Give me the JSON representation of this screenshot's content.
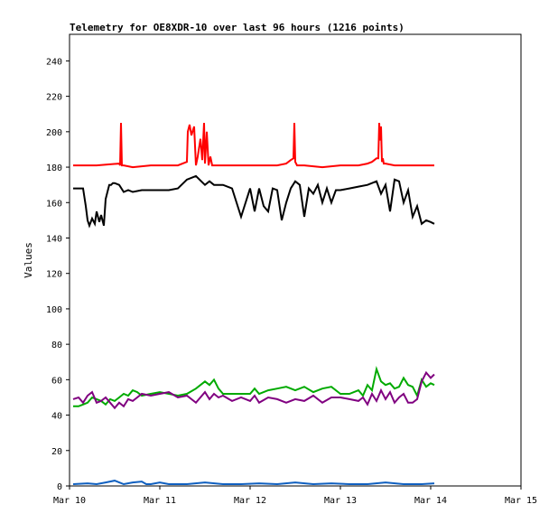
{
  "chart_data": {
    "type": "line",
    "title": "Telemetry for OE8XDR-10 over last 96 hours (1216 points)",
    "xlabel": "",
    "ylabel": "Values",
    "x_range": [
      "Mar 10",
      "Mar 15"
    ],
    "ylim": [
      0,
      255
    ],
    "x_ticks": [
      "Mar 10",
      "Mar 11",
      "Mar 12",
      "Mar 13",
      "Mar 14",
      "Mar 15"
    ],
    "y_ticks": [
      0,
      20,
      40,
      60,
      80,
      100,
      120,
      140,
      160,
      180,
      200,
      220,
      240
    ],
    "grid": false,
    "legend": "none",
    "x_units": "days since Mar 10",
    "series": [
      {
        "color": "#ff0000",
        "x": [
          0.04,
          0.3,
          0.55,
          0.56,
          0.57,
          0.58,
          0.6,
          0.7,
          0.9,
          1.0,
          1.2,
          1.3,
          1.31,
          1.33,
          1.35,
          1.38,
          1.4,
          1.42,
          1.45,
          1.47,
          1.49,
          1.5,
          1.52,
          1.54,
          1.56,
          1.58,
          1.6,
          1.8,
          2.0,
          2.3,
          2.4,
          2.45,
          2.48,
          2.49,
          2.5,
          2.52,
          2.6,
          2.8,
          3.0,
          3.2,
          3.3,
          3.35,
          3.4,
          3.42,
          3.43,
          3.44,
          3.45,
          3.46,
          3.47,
          3.48,
          3.5,
          3.6,
          3.8,
          4.04
        ],
        "y": [
          181,
          181,
          182,
          181,
          205,
          181,
          181,
          180,
          181,
          181,
          181,
          183,
          200,
          204,
          198,
          203,
          181,
          186,
          196,
          184,
          205,
          182,
          200,
          181,
          186,
          181,
          181,
          181,
          181,
          181,
          182,
          184,
          185,
          205,
          183,
          181,
          181,
          180,
          181,
          181,
          182,
          183,
          185,
          185,
          205,
          195,
          203,
          183,
          185,
          182,
          182,
          181,
          181,
          181
        ]
      },
      {
        "color": "#000000",
        "x": [
          0.04,
          0.15,
          0.18,
          0.2,
          0.22,
          0.25,
          0.28,
          0.3,
          0.33,
          0.35,
          0.38,
          0.4,
          0.42,
          0.44,
          0.46,
          0.48,
          0.5,
          0.55,
          0.6,
          0.65,
          0.7,
          0.8,
          0.9,
          1.0,
          1.1,
          1.2,
          1.3,
          1.4,
          1.5,
          1.55,
          1.6,
          1.65,
          1.7,
          1.8,
          1.9,
          2.0,
          2.05,
          2.1,
          2.15,
          2.2,
          2.25,
          2.3,
          2.35,
          2.4,
          2.45,
          2.5,
          2.55,
          2.6,
          2.65,
          2.7,
          2.75,
          2.8,
          2.85,
          2.9,
          2.95,
          3.0,
          3.1,
          3.2,
          3.3,
          3.4,
          3.45,
          3.5,
          3.55,
          3.6,
          3.65,
          3.7,
          3.75,
          3.8,
          3.85,
          3.9,
          3.95,
          4.0,
          4.04
        ],
        "y": [
          168,
          168,
          158,
          150,
          147,
          151,
          148,
          155,
          149,
          153,
          147,
          162,
          166,
          170,
          170,
          171,
          171,
          170,
          166,
          167,
          166,
          167,
          167,
          167,
          167,
          168,
          173,
          175,
          170,
          172,
          170,
          170,
          170,
          168,
          152,
          168,
          155,
          168,
          158,
          155,
          168,
          167,
          150,
          160,
          168,
          172,
          170,
          152,
          168,
          165,
          170,
          160,
          168,
          160,
          167,
          167,
          168,
          169,
          170,
          172,
          165,
          170,
          155,
          173,
          172,
          160,
          167,
          152,
          158,
          148,
          150,
          149,
          148
        ]
      },
      {
        "color": "#00aa00",
        "x": [
          0.04,
          0.1,
          0.15,
          0.2,
          0.25,
          0.3,
          0.35,
          0.4,
          0.45,
          0.5,
          0.55,
          0.6,
          0.65,
          0.7,
          0.75,
          0.8,
          0.9,
          1.0,
          1.1,
          1.2,
          1.3,
          1.4,
          1.5,
          1.55,
          1.6,
          1.65,
          1.7,
          1.8,
          1.9,
          2.0,
          2.05,
          2.1,
          2.2,
          2.3,
          2.4,
          2.5,
          2.6,
          2.7,
          2.8,
          2.9,
          3.0,
          3.1,
          3.2,
          3.25,
          3.3,
          3.35,
          3.4,
          3.45,
          3.5,
          3.55,
          3.6,
          3.65,
          3.7,
          3.75,
          3.8,
          3.85,
          3.9,
          3.95,
          4.0,
          4.04
        ],
        "y": [
          45,
          45,
          46,
          47,
          50,
          49,
          48,
          46,
          49,
          48,
          50,
          52,
          51,
          54,
          53,
          51,
          52,
          53,
          52,
          51,
          52,
          55,
          59,
          57,
          60,
          55,
          52,
          52,
          52,
          52,
          55,
          52,
          54,
          55,
          56,
          54,
          56,
          53,
          55,
          56,
          52,
          52,
          54,
          51,
          57,
          54,
          66,
          59,
          57,
          58,
          55,
          56,
          61,
          57,
          56,
          51,
          60,
          56,
          58,
          57
        ]
      },
      {
        "color": "#800080",
        "x": [
          0.04,
          0.1,
          0.15,
          0.2,
          0.25,
          0.3,
          0.35,
          0.4,
          0.45,
          0.5,
          0.55,
          0.6,
          0.65,
          0.7,
          0.75,
          0.8,
          0.9,
          1.0,
          1.1,
          1.2,
          1.3,
          1.4,
          1.5,
          1.55,
          1.6,
          1.65,
          1.7,
          1.8,
          1.9,
          2.0,
          2.05,
          2.1,
          2.2,
          2.3,
          2.4,
          2.5,
          2.6,
          2.7,
          2.8,
          2.9,
          3.0,
          3.1,
          3.2,
          3.25,
          3.3,
          3.35,
          3.4,
          3.45,
          3.5,
          3.55,
          3.6,
          3.65,
          3.7,
          3.75,
          3.8,
          3.85,
          3.9,
          3.95,
          4.0,
          4.04
        ],
        "y": [
          49,
          50,
          47,
          51,
          53,
          47,
          48,
          50,
          47,
          44,
          47,
          45,
          49,
          48,
          50,
          52,
          51,
          52,
          53,
          50,
          51,
          47,
          53,
          49,
          52,
          50,
          51,
          48,
          50,
          48,
          51,
          47,
          50,
          49,
          47,
          49,
          48,
          51,
          47,
          50,
          50,
          49,
          48,
          50,
          46,
          52,
          48,
          54,
          49,
          53,
          47,
          50,
          52,
          47,
          47,
          49,
          59,
          64,
          61,
          63
        ]
      },
      {
        "color": "#1060c0",
        "x": [
          0.04,
          0.2,
          0.3,
          0.4,
          0.5,
          0.55,
          0.6,
          0.7,
          0.8,
          0.85,
          0.9,
          1.0,
          1.1,
          1.3,
          1.5,
          1.7,
          1.9,
          2.1,
          2.3,
          2.5,
          2.7,
          2.9,
          3.1,
          3.3,
          3.5,
          3.7,
          3.9,
          4.04
        ],
        "y": [
          1,
          1.5,
          1,
          2,
          3,
          2,
          1,
          2,
          2.5,
          1,
          1,
          2,
          1,
          1,
          2,
          1,
          1,
          1.5,
          1,
          2,
          1,
          1.5,
          1,
          1,
          2,
          1,
          1,
          1.5
        ]
      }
    ]
  }
}
